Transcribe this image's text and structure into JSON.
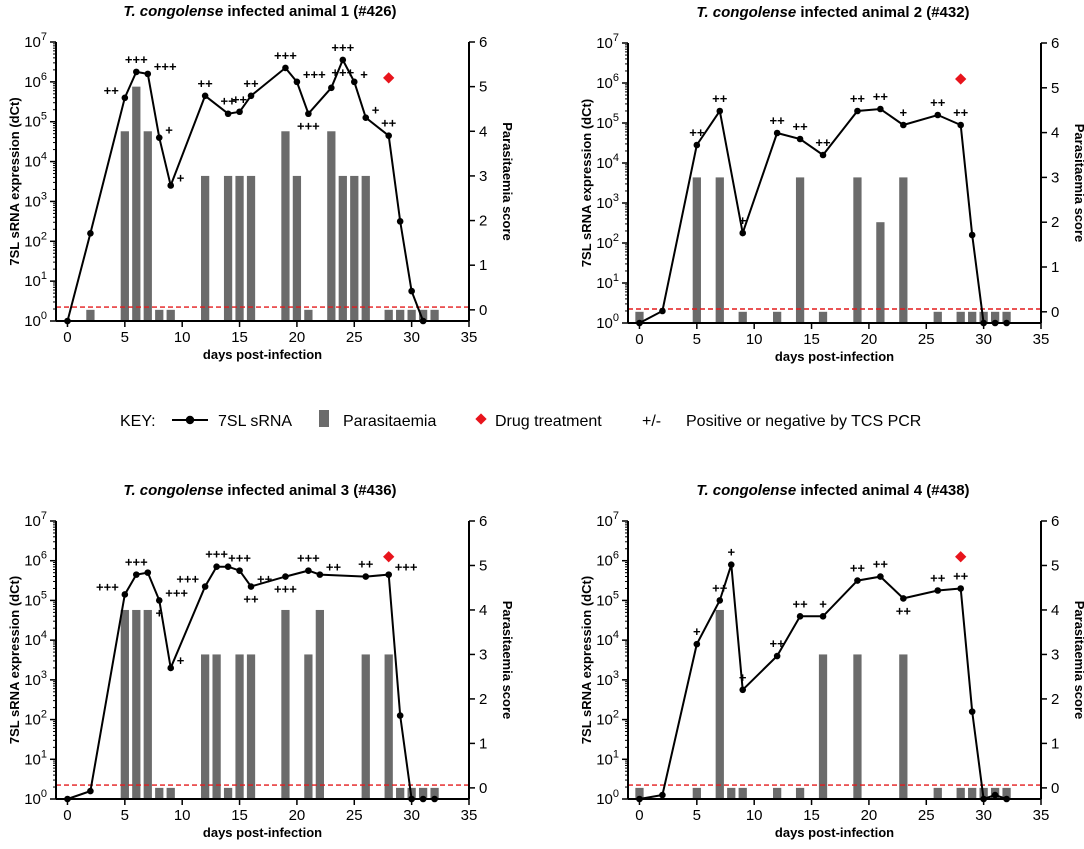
{
  "key": {
    "label": "KEY:",
    "items": [
      {
        "symbol": "line-dot",
        "label": "7SL sRNA"
      },
      {
        "symbol": "bar",
        "label": "Parasitaemia"
      },
      {
        "symbol": "diamond",
        "label": "Drug treatment"
      },
      {
        "symbol": "text",
        "glyph": "+/-",
        "label": "Positive or negative by TCS PCR"
      }
    ]
  },
  "colors": {
    "line": "#000000",
    "bar": "#6b6b6b",
    "threshold": "#e31a1c",
    "drug": "#e8141c"
  },
  "chart_data": [
    {
      "type": "bar+line",
      "title_italic": "T. congolense",
      "title_rest": " infected animal 1 (#426)",
      "xlabel": "days post-infection",
      "ylabel_left": "7SL sRNA expression (dCt)",
      "ylabel_right": "Parasitaemia score",
      "xlim": [
        -1,
        35
      ],
      "xticks": [
        0,
        5,
        10,
        15,
        20,
        25,
        30,
        35
      ],
      "ylim_left_log10": [
        0,
        7
      ],
      "ylim_right": [
        -0.25,
        6
      ],
      "yticks_right": [
        0,
        1,
        2,
        3,
        4,
        5,
        6
      ],
      "threshold_log10": 0.35,
      "drug_day": 28,
      "bars": {
        "days": [
          2,
          5,
          6,
          7,
          8,
          9,
          12,
          14,
          15,
          16,
          19,
          20,
          21,
          23,
          24,
          25,
          26,
          28,
          29,
          30,
          31,
          32
        ],
        "scores": [
          0,
          4,
          5,
          4,
          0,
          0,
          3,
          3,
          3,
          3,
          4,
          3,
          0,
          4,
          3,
          3,
          3,
          0,
          0,
          0,
          0,
          0
        ]
      },
      "line": {
        "days": [
          0,
          2,
          5,
          6,
          7,
          8,
          9,
          12,
          14,
          15,
          16,
          19,
          20,
          21,
          23,
          24,
          25,
          26,
          28,
          29,
          30,
          31
        ],
        "log10": [
          0.0,
          2.2,
          5.6,
          6.25,
          6.2,
          4.6,
          3.4,
          5.65,
          5.2,
          5.25,
          5.65,
          6.35,
          6.0,
          5.2,
          5.85,
          6.55,
          6.0,
          5.1,
          4.65,
          2.5,
          0.75,
          0.0
        ]
      },
      "labels": [
        {
          "day": 5,
          "text": "++",
          "pos": "left"
        },
        {
          "day": 6,
          "text": "+++",
          "pos": "above"
        },
        {
          "day": 7,
          "text": "+++",
          "pos": "right"
        },
        {
          "day": 8,
          "text": "+",
          "pos": "right"
        },
        {
          "day": 9,
          "text": "+",
          "pos": "right"
        },
        {
          "day": 12,
          "text": "++",
          "pos": "above"
        },
        {
          "day": 14,
          "text": "++",
          "pos": "above"
        },
        {
          "day": 15,
          "text": "++",
          "pos": "above"
        },
        {
          "day": 16,
          "text": "++",
          "pos": "above"
        },
        {
          "day": 19,
          "text": "+++",
          "pos": "above"
        },
        {
          "day": 20,
          "text": "+++",
          "pos": "right"
        },
        {
          "day": 21,
          "text": "+++",
          "pos": "below"
        },
        {
          "day": 24,
          "text": "+++",
          "pos": "above"
        },
        {
          "day": 24,
          "text": "+++",
          "pos": "below"
        },
        {
          "day": 25,
          "text": "+",
          "pos": "right"
        },
        {
          "day": 26,
          "text": "+",
          "pos": "right"
        },
        {
          "day": 28,
          "text": "++",
          "pos": "above"
        }
      ]
    },
    {
      "type": "bar+line",
      "title_italic": "T. congolense",
      "title_rest": " infected animal 2 (#432)",
      "xlabel": "days post-infection",
      "ylabel_left": "7SL sRNA expression (dCt)",
      "ylabel_right": "Parasitaemia score",
      "xlim": [
        -1,
        35
      ],
      "xticks": [
        0,
        5,
        10,
        15,
        20,
        25,
        30,
        35
      ],
      "ylim_left_log10": [
        0,
        7
      ],
      "ylim_right": [
        -0.25,
        6
      ],
      "yticks_right": [
        0,
        1,
        2,
        3,
        4,
        5,
        6
      ],
      "threshold_log10": 0.35,
      "drug_day": 28,
      "bars": {
        "days": [
          0,
          5,
          7,
          9,
          12,
          14,
          16,
          19,
          21,
          23,
          26,
          28,
          29,
          30,
          31,
          32
        ],
        "scores": [
          0,
          3,
          3,
          0,
          0,
          3,
          0,
          3,
          2,
          3,
          0,
          0,
          0,
          0,
          0,
          0
        ]
      },
      "line": {
        "days": [
          0,
          2,
          5,
          7,
          9,
          12,
          14,
          16,
          19,
          21,
          23,
          26,
          28,
          29,
          30,
          31,
          32
        ],
        "log10": [
          0.0,
          0.3,
          4.45,
          5.3,
          2.25,
          4.75,
          4.6,
          4.2,
          5.3,
          5.35,
          4.95,
          5.2,
          4.95,
          2.2,
          0.0,
          0.0,
          0.0
        ]
      },
      "labels": [
        {
          "day": 5,
          "text": "++",
          "pos": "above"
        },
        {
          "day": 7,
          "text": "++",
          "pos": "above"
        },
        {
          "day": 9,
          "text": "+",
          "pos": "above"
        },
        {
          "day": 12,
          "text": "++",
          "pos": "above"
        },
        {
          "day": 14,
          "text": "++",
          "pos": "above"
        },
        {
          "day": 16,
          "text": "++",
          "pos": "above"
        },
        {
          "day": 19,
          "text": "++",
          "pos": "above"
        },
        {
          "day": 21,
          "text": "++",
          "pos": "above"
        },
        {
          "day": 23,
          "text": "+",
          "pos": "above"
        },
        {
          "day": 26,
          "text": "++",
          "pos": "above"
        },
        {
          "day": 28,
          "text": "++",
          "pos": "above"
        }
      ]
    },
    {
      "type": "bar+line",
      "title_italic": "T. congolense",
      "title_rest": " infected animal 3 (#436)",
      "xlabel": "days post-infection",
      "ylabel_left": "7SL sRNA expression (dCt)",
      "ylabel_right": "Parasitaemia score",
      "xlim": [
        -1,
        35
      ],
      "xticks": [
        0,
        5,
        10,
        15,
        20,
        25,
        30,
        35
      ],
      "ylim_left_log10": [
        0,
        7
      ],
      "ylim_right": [
        -0.25,
        6
      ],
      "yticks_right": [
        0,
        1,
        2,
        3,
        4,
        5,
        6
      ],
      "threshold_log10": 0.35,
      "drug_day": 28,
      "bars": {
        "days": [
          5,
          6,
          7,
          8,
          9,
          12,
          13,
          14,
          15,
          16,
          19,
          21,
          22,
          26,
          28,
          29,
          30,
          31,
          32
        ],
        "scores": [
          4,
          4,
          4,
          0,
          0,
          3,
          3,
          0,
          3,
          3,
          4,
          3,
          4,
          3,
          3,
          0,
          0,
          0,
          0
        ]
      },
      "line": {
        "days": [
          0,
          2,
          5,
          6,
          7,
          8,
          9,
          12,
          13,
          14,
          15,
          16,
          19,
          21,
          22,
          26,
          28,
          29,
          30,
          31,
          32
        ],
        "log10": [
          0.0,
          0.2,
          5.15,
          5.65,
          5.7,
          5.0,
          3.3,
          5.35,
          5.85,
          5.85,
          5.75,
          5.35,
          5.6,
          5.75,
          5.65,
          5.6,
          5.65,
          2.1,
          0.0,
          0.0,
          0.0
        ]
      },
      "labels": [
        {
          "day": 5,
          "text": "+++",
          "pos": "left"
        },
        {
          "day": 6,
          "text": "+++",
          "pos": "above"
        },
        {
          "day": 8,
          "text": "+++",
          "pos": "right"
        },
        {
          "day": 8,
          "text": "+",
          "pos": "below"
        },
        {
          "day": 9,
          "text": "+",
          "pos": "right"
        },
        {
          "day": 12,
          "text": "+++",
          "pos": "left"
        },
        {
          "day": 13,
          "text": "+++",
          "pos": "above"
        },
        {
          "day": 15,
          "text": "+++",
          "pos": "above"
        },
        {
          "day": 16,
          "text": "++",
          "pos": "right"
        },
        {
          "day": 16,
          "text": "++",
          "pos": "below"
        },
        {
          "day": 19,
          "text": "+++",
          "pos": "below"
        },
        {
          "day": 21,
          "text": "+++",
          "pos": "above"
        },
        {
          "day": 22,
          "text": "++",
          "pos": "right"
        },
        {
          "day": 26,
          "text": "++",
          "pos": "above"
        },
        {
          "day": 28,
          "text": "+++",
          "pos": "right"
        }
      ]
    },
    {
      "type": "bar+line",
      "title_italic": "T. congolense",
      "title_rest": " infected animal 4 (#438)",
      "xlabel": "days post-infection",
      "ylabel_left": "7SL sRNA expression (dCt)",
      "ylabel_right": "Parasitaemia score",
      "xlim": [
        -1,
        35
      ],
      "xticks": [
        0,
        5,
        10,
        15,
        20,
        25,
        30,
        35
      ],
      "ylim_left_log10": [
        0,
        7
      ],
      "ylim_right": [
        -0.25,
        6
      ],
      "yticks_right": [
        0,
        1,
        2,
        3,
        4,
        5,
        6
      ],
      "threshold_log10": 0.35,
      "drug_day": 28,
      "bars": {
        "days": [
          0,
          5,
          7,
          8,
          9,
          12,
          14,
          16,
          19,
          23,
          26,
          28,
          29,
          30,
          31,
          32
        ],
        "scores": [
          0,
          0,
          4,
          0,
          0,
          0,
          0,
          3,
          3,
          3,
          0,
          0,
          0,
          0,
          0,
          0
        ]
      },
      "line": {
        "days": [
          0,
          2,
          5,
          7,
          8,
          9,
          12,
          14,
          16,
          19,
          21,
          23,
          26,
          28,
          29,
          30,
          31,
          32
        ],
        "log10": [
          0.0,
          0.1,
          3.9,
          5.0,
          5.9,
          2.75,
          3.6,
          4.6,
          4.6,
          5.5,
          5.6,
          5.05,
          5.25,
          5.3,
          2.2,
          0.0,
          0.1,
          0.0
        ]
      },
      "labels": [
        {
          "day": 5,
          "text": "+",
          "pos": "above"
        },
        {
          "day": 7,
          "text": "++",
          "pos": "above"
        },
        {
          "day": 8,
          "text": "+",
          "pos": "above"
        },
        {
          "day": 9,
          "text": "+",
          "pos": "above"
        },
        {
          "day": 12,
          "text": "++",
          "pos": "above"
        },
        {
          "day": 14,
          "text": "++",
          "pos": "above"
        },
        {
          "day": 16,
          "text": "+",
          "pos": "above"
        },
        {
          "day": 19,
          "text": "++",
          "pos": "above"
        },
        {
          "day": 21,
          "text": "++",
          "pos": "above"
        },
        {
          "day": 23,
          "text": "++",
          "pos": "below"
        },
        {
          "day": 26,
          "text": "++",
          "pos": "above"
        },
        {
          "day": 28,
          "text": "++",
          "pos": "above"
        }
      ]
    }
  ]
}
